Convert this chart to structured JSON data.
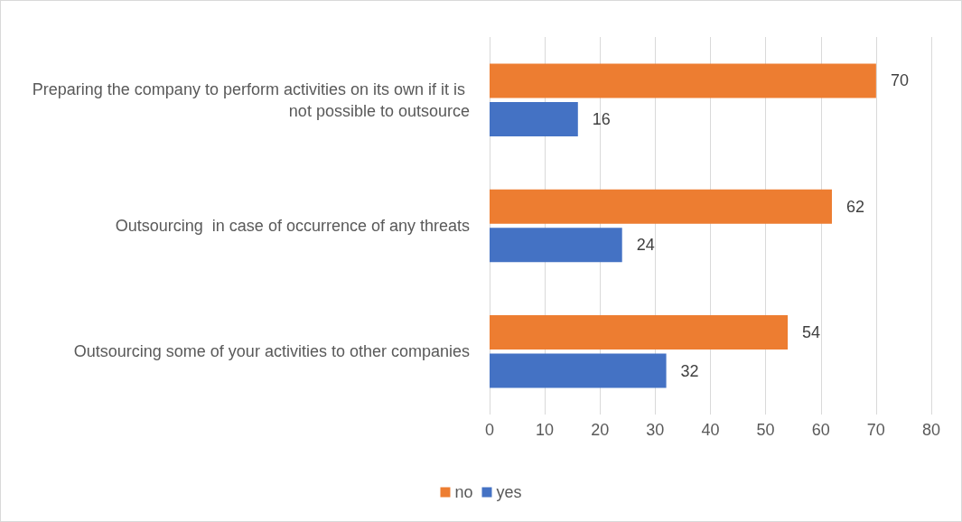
{
  "chart_data": {
    "type": "bar",
    "orientation": "horizontal",
    "categories": [
      "Preparing the company to perform activities on its own if it is not possible to outsource",
      "Outsourcing  in case of occurrence of any threats",
      "Outsourcing some of your activities to other companies"
    ],
    "series": [
      {
        "name": "no",
        "color": "#ed7d31",
        "values": [
          70,
          62,
          54
        ]
      },
      {
        "name": "yes",
        "color": "#4472c4",
        "values": [
          16,
          24,
          32
        ]
      }
    ],
    "xlim": [
      0,
      80
    ],
    "xticks": [
      0,
      10,
      20,
      30,
      40,
      50,
      60,
      70,
      80
    ],
    "grid": "x",
    "legend": "bottom",
    "data_labels": true
  }
}
